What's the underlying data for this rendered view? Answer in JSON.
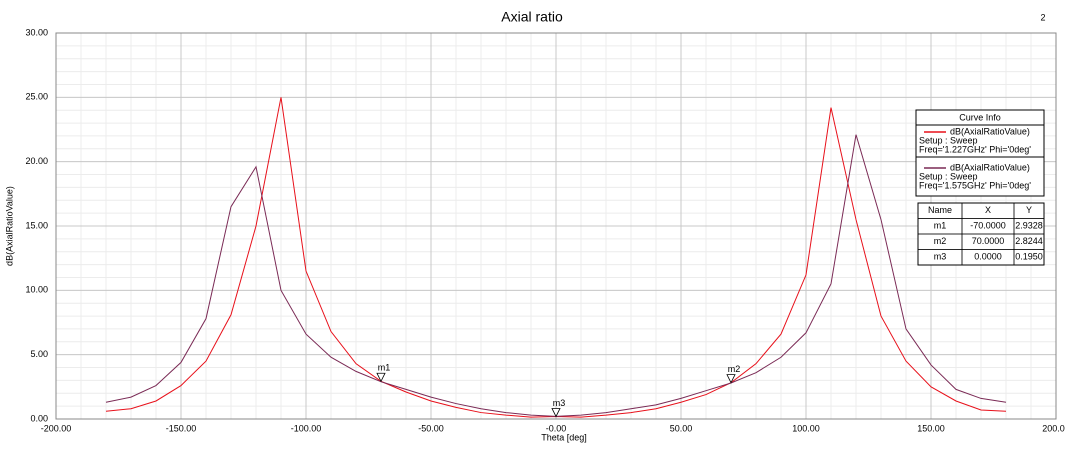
{
  "chart_data": {
    "type": "line",
    "title": "Axial ratio",
    "corner_label": "2",
    "xlabel": "Theta [deg]",
    "ylabel": "dB(AxialRatioValue)",
    "x": [
      -180,
      -170,
      -160,
      -150,
      -140,
      -130,
      -120,
      -110,
      -100,
      -90,
      -80,
      -70,
      -60,
      -50,
      -40,
      -30,
      -20,
      -10,
      0,
      10,
      20,
      30,
      40,
      50,
      60,
      70,
      80,
      90,
      100,
      110,
      120,
      130,
      140,
      150,
      160,
      170,
      180
    ],
    "series": [
      {
        "name": "dB(AxialRatioValue)",
        "setup": "Setup : Sweep",
        "freq": "Freq='1.227GHz' Phi='0deg'",
        "color": "#e8101a",
        "values": [
          0.6,
          0.8,
          1.4,
          2.6,
          4.5,
          8.1,
          15,
          25,
          11.5,
          6.8,
          4.3,
          2.93,
          2.1,
          1.4,
          0.9,
          0.5,
          0.3,
          0.15,
          0.195,
          0.15,
          0.3,
          0.5,
          0.8,
          1.3,
          1.9,
          2.82,
          4.3,
          6.6,
          11.2,
          24.2,
          15.5,
          8.0,
          4.5,
          2.5,
          1.4,
          0.7,
          0.6
        ]
      },
      {
        "name": "dB(AxialRatioValue)",
        "setup": "Setup : Sweep",
        "freq": "Freq='1.575GHz' Phi='0deg'",
        "color": "#7a2a55",
        "values": [
          1.3,
          1.7,
          2.6,
          4.4,
          7.8,
          16.5,
          19.6,
          10,
          6.6,
          4.8,
          3.7,
          2.9,
          2.3,
          1.7,
          1.2,
          0.8,
          0.5,
          0.3,
          0.2,
          0.3,
          0.5,
          0.8,
          1.1,
          1.6,
          2.2,
          2.8,
          3.6,
          4.8,
          6.7,
          10.5,
          22.1,
          15.5,
          7,
          4.2,
          2.3,
          1.6,
          1.3
        ]
      }
    ],
    "xlim": [
      -200,
      200
    ],
    "xticks": [
      {
        "value": -200,
        "label": "-200.00"
      },
      {
        "value": -150,
        "label": "-150.00"
      },
      {
        "value": -100,
        "label": "-100.00"
      },
      {
        "value": -50,
        "label": "-50.00"
      },
      {
        "value": 0,
        "label": "-0.00"
      },
      {
        "value": 50,
        "label": "50.00"
      },
      {
        "value": 100,
        "label": "100.00"
      },
      {
        "value": 150,
        "label": "150.00"
      },
      {
        "value": 200,
        "label": "200.00"
      }
    ],
    "ylim": [
      0,
      30
    ],
    "yticks": [
      {
        "value": 0,
        "label": "0.00"
      },
      {
        "value": 5,
        "label": "5.00"
      },
      {
        "value": 10,
        "label": "10.00"
      },
      {
        "value": 15,
        "label": "15.00"
      },
      {
        "value": 20,
        "label": "20.00"
      },
      {
        "value": 25,
        "label": "25.00"
      },
      {
        "value": 30,
        "label": "30.00"
      }
    ],
    "grid": true,
    "legend_title": "Curve Info",
    "markers": {
      "columns": [
        "Name",
        "X",
        "Y"
      ],
      "rows": [
        [
          "m1",
          "-70.0000",
          "2.9328"
        ],
        [
          "m2",
          "70.0000",
          "2.8244"
        ],
        [
          "m3",
          "0.0000",
          "0.1950"
        ]
      ]
    }
  }
}
